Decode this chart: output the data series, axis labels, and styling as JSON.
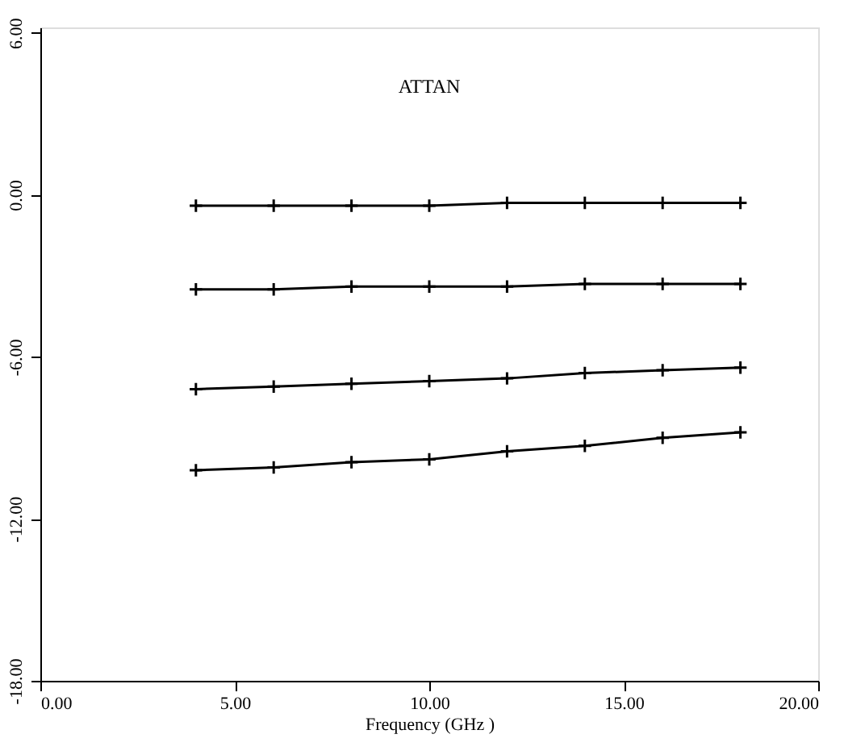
{
  "chart_data": {
    "type": "line",
    "title": "ATTAN",
    "xlabel": "Frequency (GHz )",
    "x": [
      4,
      6,
      8,
      10,
      12,
      14,
      16,
      18
    ],
    "series": [
      {
        "color": "#000000",
        "values": [
          -0.4,
          -0.4,
          -0.4,
          -0.4,
          -0.3,
          -0.3,
          -0.3,
          -0.3
        ]
      },
      {
        "color": "#000000",
        "values": [
          -3.5,
          -3.5,
          -3.4,
          -3.4,
          -3.4,
          -3.3,
          -3.3,
          -3.3
        ]
      },
      {
        "color": "#000000",
        "values": [
          -7.2,
          -7.1,
          -7.0,
          -6.9,
          -6.8,
          -6.6,
          -6.5,
          -6.4
        ]
      },
      {
        "color": "#000000",
        "values": [
          -10.2,
          -10.1,
          -9.9,
          -9.8,
          -9.5,
          -9.3,
          -9.0,
          -8.8
        ]
      }
    ],
    "xlim": [
      0,
      20
    ],
    "xticks": [
      {
        "value": 0,
        "label": "0.00"
      },
      {
        "value": 5,
        "label": "5.00"
      },
      {
        "value": 10,
        "label": "10.00"
      },
      {
        "value": 15,
        "label": "15.00"
      },
      {
        "value": 20,
        "label": "20.00"
      }
    ],
    "ylim": [
      -18,
      6.2
    ],
    "yticks": [
      {
        "value": 6,
        "label": "6.00"
      },
      {
        "value": 0,
        "label": "0.00"
      },
      {
        "value": -6,
        "label": "-6.00"
      },
      {
        "value": -12,
        "label": "-12.00"
      },
      {
        "value": -18,
        "label": "-18.00"
      }
    ],
    "grid": false,
    "legend": false,
    "marker": "cross",
    "line_style": "solid"
  }
}
